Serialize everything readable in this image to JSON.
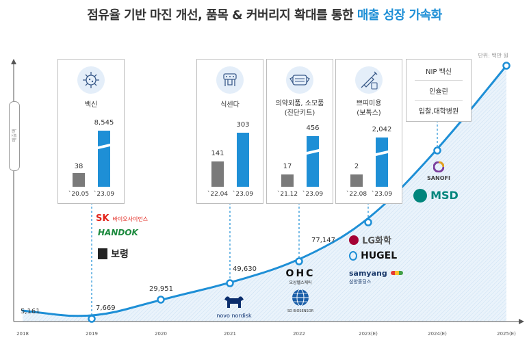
{
  "title": {
    "main": "점유율 기반 마진 개선, 품목 & 커버리지 확대를 통한 ",
    "highlight": "매출 성장 가속화"
  },
  "unit": "단위: 백만 원",
  "colors": {
    "accent": "#1e8fd6",
    "gray": "#7a7a7a",
    "area": "#dcecf8"
  },
  "chart_data": {
    "type": "line",
    "x": [
      "2018",
      "2019",
      "2020",
      "2021",
      "2022",
      "2023(E)",
      "2024(E)",
      "2025(E)"
    ],
    "series": [
      {
        "values": [
          5161,
          7669,
          29951,
          49630,
          77147,
          null,
          null,
          null
        ]
      }
    ],
    "labels": [
      "5,161",
      "7,669",
      "29,951",
      "49,630",
      "77,147"
    ],
    "ylabel": "매출액"
  },
  "boxes": [
    {
      "name": "vaccine",
      "label": "백신",
      "icon": "virus-icon",
      "before": {
        "value": "38",
        "date": "`20.05"
      },
      "after": {
        "value": "8,545",
        "date": "`23.09"
      }
    },
    {
      "name": "food-poisoning",
      "label": "식센다",
      "icon": "device-icon",
      "before": {
        "value": "141",
        "date": "`22.04"
      },
      "after": {
        "value": "303",
        "date": "`23.09"
      }
    },
    {
      "name": "quasi-drug",
      "label": "의약외품, 소모품",
      "label2": "(진단키트)",
      "icon": "mask-icon",
      "before": {
        "value": "17",
        "date": "`21.12"
      },
      "after": {
        "value": "456",
        "date": "`23.09"
      }
    },
    {
      "name": "botox",
      "label": "쁘띠미용",
      "label2": "(보톡스)",
      "icon": "syringe-icon",
      "before": {
        "value": "2",
        "date": "`22.08"
      },
      "after": {
        "value": "2,042",
        "date": "`23.09"
      }
    }
  ],
  "nip_box": {
    "items": [
      "NIP 백신",
      "인슐린",
      "입찰,대학병원"
    ]
  },
  "logos": {
    "sk": "SK",
    "sk_sub": "바이오사이언스",
    "handok": "HANDOK",
    "boryung": "보령",
    "novo": "novo nordisk",
    "ohc": "OHC",
    "ohc_sub": "오상헬스케어",
    "sd": "SD BIOSENSOR",
    "lg": "LG화학",
    "hugel": "HUGEL",
    "samyang": "samyang",
    "samyang_sub": "삼양홀딩스",
    "sanofi": "SANOFI",
    "msd": "MSD"
  }
}
